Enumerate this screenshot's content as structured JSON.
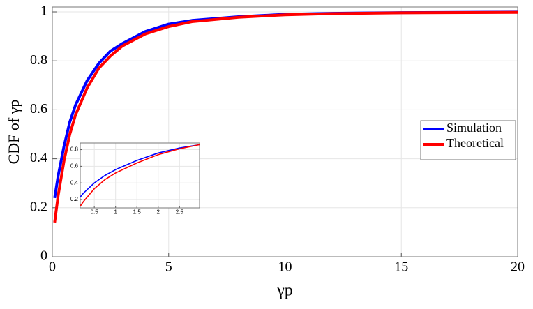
{
  "chart_data": [
    {
      "type": "line",
      "xlabel": "γp",
      "ylabel": "CDF of γp",
      "x": [
        0.1,
        0.25,
        0.5,
        0.75,
        1,
        1.5,
        2,
        2.5,
        3,
        4,
        5,
        6,
        8,
        10,
        12,
        15,
        20
      ],
      "series": [
        {
          "name": "Simulation",
          "color": "#0000ff",
          "values": [
            0.24,
            0.33,
            0.45,
            0.55,
            0.62,
            0.72,
            0.79,
            0.84,
            0.87,
            0.92,
            0.95,
            0.965,
            0.98,
            0.99,
            0.994,
            0.997,
            0.999
          ]
        },
        {
          "name": "Theoretical",
          "color": "#ff0000",
          "values": [
            0.14,
            0.25,
            0.39,
            0.5,
            0.58,
            0.69,
            0.77,
            0.82,
            0.86,
            0.91,
            0.94,
            0.96,
            0.978,
            0.988,
            0.993,
            0.996,
            0.998
          ]
        }
      ],
      "xlim": [
        0,
        20
      ],
      "ylim": [
        0,
        1.02
      ],
      "xticks": [
        0,
        5,
        10,
        15,
        20
      ],
      "yticks": [
        0,
        0.2,
        0.4,
        0.6,
        0.8,
        1
      ],
      "grid": true,
      "legend": "center right"
    },
    {
      "type": "line",
      "x": [
        0.17,
        0.25,
        0.5,
        0.75,
        1,
        1.5,
        2,
        2.5,
        2.97
      ],
      "series": [
        {
          "color": "#0000ff",
          "values": [
            0.23,
            0.28,
            0.4,
            0.49,
            0.56,
            0.67,
            0.76,
            0.82,
            0.86
          ]
        },
        {
          "color": "#ff0000",
          "values": [
            0.12,
            0.18,
            0.33,
            0.44,
            0.52,
            0.64,
            0.74,
            0.81,
            0.86
          ]
        }
      ],
      "xlim": [
        0.17,
        2.97
      ],
      "ylim": [
        0.1,
        0.88
      ],
      "xticks": [
        0.5,
        1,
        1.5,
        2,
        2.5
      ],
      "yticks": [
        0.2,
        0.4,
        0.6,
        0.8
      ],
      "grid": true
    }
  ]
}
